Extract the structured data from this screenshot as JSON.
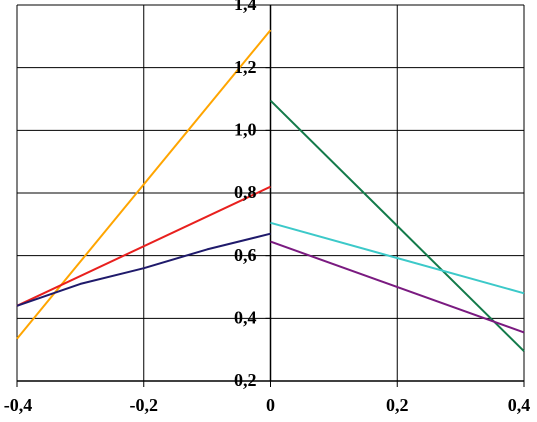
{
  "chart_data": {
    "type": "line",
    "title": "",
    "xlabel": "",
    "ylabel": "",
    "xlim": [
      -0.4,
      0.4
    ],
    "ylim": [
      0.2,
      1.4
    ],
    "grid": true,
    "legend": "none",
    "x_ticks": [
      -0.4,
      -0.2,
      0,
      0.2,
      0.4
    ],
    "x_tick_labels": [
      "-0,4",
      "-0,2",
      "0",
      "0,2",
      "0,4"
    ],
    "y_ticks": [
      0.2,
      0.4,
      0.6,
      0.8,
      1.0,
      1.2,
      1.4
    ],
    "y_tick_labels": [
      "0,2",
      "0,4",
      "0,6",
      "0,8",
      "1,0",
      "1,2",
      "1,4"
    ],
    "series": [
      {
        "color": "#FFA500",
        "x": [
          -0.4,
          0.0
        ],
        "y": [
          0.335,
          1.32
        ]
      },
      {
        "color": "#E8201E",
        "x": [
          -0.4,
          0.0
        ],
        "y": [
          0.44,
          0.82
        ]
      },
      {
        "color": "#1F1A6B",
        "x": [
          -0.4,
          -0.3,
          -0.2,
          -0.1,
          0.0
        ],
        "y": [
          0.44,
          0.51,
          0.56,
          0.62,
          0.67
        ]
      },
      {
        "color": "#137A4A",
        "x": [
          0.0,
          0.4
        ],
        "y": [
          1.095,
          0.295
        ]
      },
      {
        "color": "#3CC9C9",
        "x": [
          0.0,
          0.4
        ],
        "y": [
          0.705,
          0.48
        ]
      },
      {
        "color": "#7A1A80",
        "x": [
          0.0,
          0.4
        ],
        "y": [
          0.645,
          0.355
        ]
      }
    ]
  }
}
